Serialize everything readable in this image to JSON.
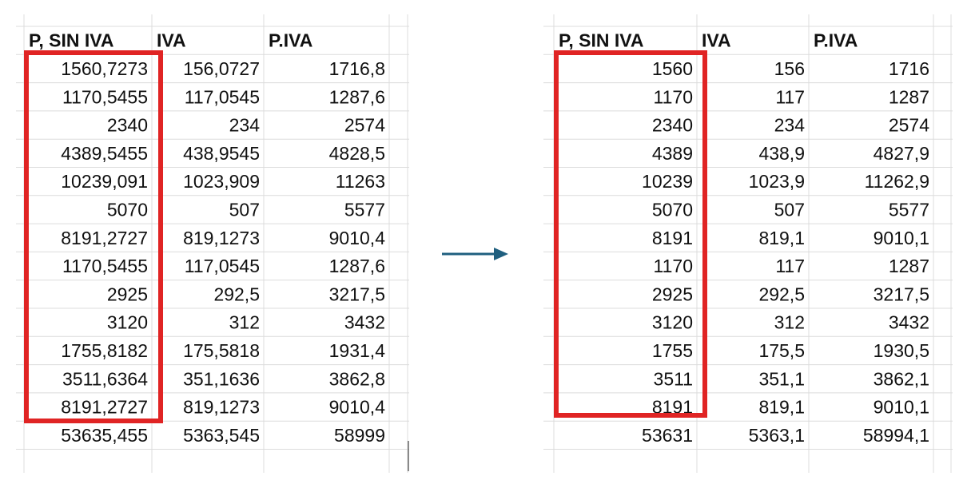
{
  "left_table": {
    "headers": [
      "P, SIN IVA",
      "IVA",
      "P.IVA"
    ],
    "rows": [
      [
        "1560,7273",
        "156,0727",
        "1716,8"
      ],
      [
        "1170,5455",
        "117,0545",
        "1287,6"
      ],
      [
        "2340",
        "234",
        "2574"
      ],
      [
        "4389,5455",
        "438,9545",
        "4828,5"
      ],
      [
        "10239,091",
        "1023,909",
        "11263"
      ],
      [
        "5070",
        "507",
        "5577"
      ],
      [
        "8191,2727",
        "819,1273",
        "9010,4"
      ],
      [
        "1170,5455",
        "117,0545",
        "1287,6"
      ],
      [
        "2925",
        "292,5",
        "3217,5"
      ],
      [
        "3120",
        "312",
        "3432"
      ],
      [
        "1755,8182",
        "175,5818",
        "1931,4"
      ],
      [
        "3511,6364",
        "351,1636",
        "3862,8"
      ],
      [
        "8191,2727",
        "819,1273",
        "9010,4"
      ],
      [
        "53635,455",
        "5363,545",
        "58999"
      ]
    ]
  },
  "right_table": {
    "headers": [
      "P, SIN IVA",
      "IVA",
      "P.IVA"
    ],
    "rows": [
      [
        "1560",
        "156",
        "1716"
      ],
      [
        "1170",
        "117",
        "1287"
      ],
      [
        "2340",
        "234",
        "2574"
      ],
      [
        "4389",
        "438,9",
        "4827,9"
      ],
      [
        "10239",
        "1023,9",
        "11262,9"
      ],
      [
        "5070",
        "507",
        "5577"
      ],
      [
        "8191",
        "819,1",
        "9010,1"
      ],
      [
        "1170",
        "117",
        "1287"
      ],
      [
        "2925",
        "292,5",
        "3217,5"
      ],
      [
        "3120",
        "312",
        "3432"
      ],
      [
        "1755",
        "175,5",
        "1930,5"
      ],
      [
        "3511",
        "351,1",
        "3862,1"
      ],
      [
        "8191",
        "819,1",
        "9010,1"
      ],
      [
        "53631",
        "5363,1",
        "58994,1"
      ]
    ]
  }
}
